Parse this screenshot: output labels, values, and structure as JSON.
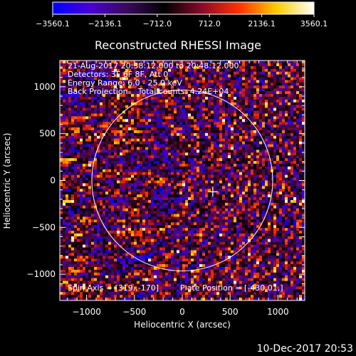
{
  "chart_data": {
    "type": "heatmap",
    "title": "Reconstructed RHESSI Image",
    "xlabel": "Heliocentric X (arcsec)",
    "ylabel": "Heliocentric Y (arcsec)",
    "xlim": [
      -1280,
      1280
    ],
    "ylim": [
      -1280,
      1280
    ],
    "x_ticks": [
      -1000,
      -500,
      0,
      500,
      1000
    ],
    "y_ticks": [
      -1000,
      -500,
      0,
      500,
      1000
    ],
    "x_tick_labels": [
      "−1000",
      "−500",
      "0",
      "500",
      "1000"
    ],
    "y_tick_labels": [
      "−1000",
      "−500",
      "0",
      "500",
      "1000"
    ],
    "colorbar": {
      "min": -3560.1,
      "max": 3560.1,
      "ticks": [
        -3560.1,
        -2136.1,
        -712.0,
        712.0,
        2136.1,
        3560.1
      ],
      "tick_labels": [
        "−3560.1",
        "−2136.1",
        "−712.0",
        "712.0",
        "2136.1",
        "3560.1"
      ],
      "colors": [
        "#0000ff",
        "#4a00d0",
        "#3a0a5a",
        "#000000",
        "#8a0a2a",
        "#ff3300",
        "#ffcc00",
        "#ffffff"
      ]
    },
    "annotations": [
      "21-Aug-2017 20:38:12.000 to 20:48:12.000",
      "Detectors: 3F 6F 8F, Att 0",
      "Energy Range: 6.0 - 25.0 keV",
      "Back Projection    Total counts: 4.24E+04"
    ],
    "spin_axis": "Spin Axis = [319.,-170]",
    "plate_position": "Plate Position = [-430.01,]",
    "solar_limb_radius_arcsec": 945,
    "plus_marker": [
      319,
      -121
    ]
  },
  "footer": {
    "timestamp": "10-Dec-2017 20:53"
  }
}
